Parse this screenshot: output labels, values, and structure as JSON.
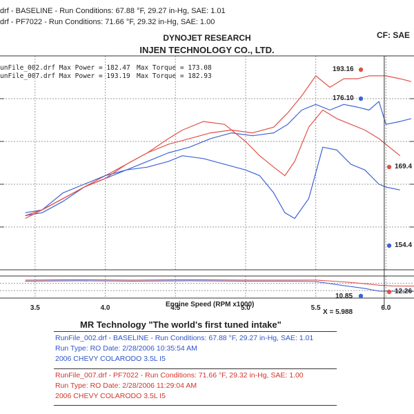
{
  "header": {
    "run1": "drf - BASELINE  -  Run Conditions: 67.88 °F, 29.27 in-Hg, SAE: 1.01",
    "run2": "drf - PF7022  -  Run Conditions: 71.66 °F, 29.32 in-Hg, SAE: 1.00",
    "company": "DYNOJET RESEARCH",
    "customer": "INJEN TECHNOLOGY CO., LTD.",
    "cf": "CF: SAE"
  },
  "summary": {
    "line1_name": "unFile_002.drf Max Power = 182.47",
    "line1_torque": "Max Torque = 173.08",
    "line2_name": "unFile_007.drf Max Power = 193.19",
    "line2_torque": "Max Torque = 182.93"
  },
  "end_labels": {
    "red_power": "193.16",
    "blue_power": "176.10",
    "red_torque": "169.4",
    "blue_torque": "154.4",
    "red_afr": "12.26",
    "blue_afr": "10.85"
  },
  "cursor_label": "X = 5.988",
  "footer": {
    "headline": "MR Technology \"The world's first tuned intake\"",
    "blue_1": "RunFile_002.drf - BASELINE  -  Run Conditions: 67.88 °F, 29.27 in-Hg, SAE: 1.01",
    "blue_2": "Run Type: RO  Date: 2/28/2006 10:35:54 AM",
    "blue_3": "2006 CHEVY COLARODO 3.5L I5",
    "red_1": "RunFile_007.drf - PF7022  -  Run Conditions: 71.66 °F, 29.32 in-Hg, SAE: 1.00",
    "red_2": "Run Type: RO  Date: 2/28/2006 11:29:04 AM",
    "red_3": "2006 CHEVY COLARODO 3.5L I5"
  },
  "colors": {
    "blue": "#3b62d8",
    "red": "#e05048",
    "grid": "#9a9a9a"
  },
  "chart_data": [
    {
      "type": "line",
      "xlabel": "Engine Speed (RPM x1000)",
      "xticks": [
        "3.5",
        "4.0",
        "4.5",
        "5.0",
        "5.5",
        "6.0"
      ],
      "xlim": [
        3.25,
        6.2
      ],
      "ylim": [
        125,
        200
      ],
      "grid": true,
      "cursor_x": 5.988,
      "series": [
        {
          "name": "RunFile_002.drf Power",
          "color": "blue",
          "x": [
            3.43,
            3.55,
            3.7,
            3.85,
            4.0,
            4.15,
            4.3,
            4.45,
            4.6,
            4.75,
            4.9,
            5.05,
            5.2,
            5.3,
            5.4,
            5.5,
            5.6,
            5.7,
            5.8,
            5.88,
            5.95,
            6.0,
            6.1,
            6.18
          ],
          "values": [
            144,
            145,
            149,
            154,
            157,
            160,
            163,
            166,
            168,
            171,
            173,
            172,
            173,
            176,
            181,
            183,
            181,
            183,
            182,
            181,
            184,
            176,
            177,
            178
          ]
        },
        {
          "name": "RunFile_007.drf Power",
          "color": "red",
          "x": [
            3.43,
            3.55,
            3.7,
            3.85,
            4.0,
            4.15,
            4.3,
            4.45,
            4.6,
            4.75,
            4.9,
            5.05,
            5.2,
            5.3,
            5.4,
            5.5,
            5.6,
            5.7,
            5.8,
            5.88,
            5.95,
            6.0,
            6.1,
            6.18
          ],
          "values": [
            143,
            146,
            150,
            154,
            158,
            162,
            166,
            169,
            171,
            173,
            174,
            173,
            175,
            180,
            186,
            193,
            189,
            192,
            192,
            193,
            193,
            193,
            192,
            191
          ]
        },
        {
          "name": "RunFile_002.drf Torque",
          "color": "blue",
          "x": [
            3.43,
            3.55,
            3.7,
            3.85,
            4.0,
            4.15,
            4.3,
            4.45,
            4.55,
            4.7,
            4.85,
            5.0,
            5.1,
            5.2,
            5.28,
            5.35,
            5.45,
            5.55,
            5.65,
            5.75,
            5.85,
            5.95,
            6.0,
            6.1
          ],
          "values": [
            145,
            146,
            152,
            155,
            158,
            160,
            161,
            163,
            165,
            164,
            162,
            160,
            158,
            152,
            145,
            143,
            150,
            168,
            167,
            162,
            160,
            155,
            154,
            153
          ]
        },
        {
          "name": "RunFile_007.drf Torque",
          "color": "red",
          "x": [
            3.43,
            3.55,
            3.7,
            3.85,
            4.0,
            4.15,
            4.3,
            4.45,
            4.55,
            4.7,
            4.85,
            5.0,
            5.1,
            5.2,
            5.28,
            5.35,
            5.45,
            5.55,
            5.65,
            5.75,
            5.85,
            5.95,
            6.0,
            6.1
          ],
          "values": [
            144,
            146,
            150,
            154,
            157,
            162,
            166,
            171,
            174,
            177,
            176,
            170,
            165,
            161,
            158,
            163,
            175,
            181,
            178,
            176,
            174,
            171,
            169,
            165
          ]
        }
      ]
    },
    {
      "type": "line",
      "ylim": [
        9,
        15
      ],
      "series": [
        {
          "name": "RunFile_002.drf AFR",
          "color": "blue",
          "x": [
            3.43,
            3.8,
            4.2,
            4.6,
            5.0,
            5.3,
            5.5,
            5.7,
            5.85,
            5.95,
            6.05,
            6.2
          ],
          "values": [
            13.6,
            13.7,
            13.6,
            13.7,
            13.6,
            13.6,
            13.5,
            12.4,
            11.6,
            10.9,
            10.85,
            10.85
          ]
        },
        {
          "name": "RunFile_007.drf AFR",
          "color": "red",
          "x": [
            3.43,
            3.8,
            4.2,
            4.6,
            5.0,
            5.3,
            5.5,
            5.7,
            5.85,
            5.95,
            6.05,
            6.2
          ],
          "values": [
            13.9,
            14.0,
            13.9,
            14.0,
            13.9,
            13.9,
            13.9,
            13.4,
            12.9,
            12.5,
            12.3,
            12.26
          ]
        }
      ]
    }
  ]
}
